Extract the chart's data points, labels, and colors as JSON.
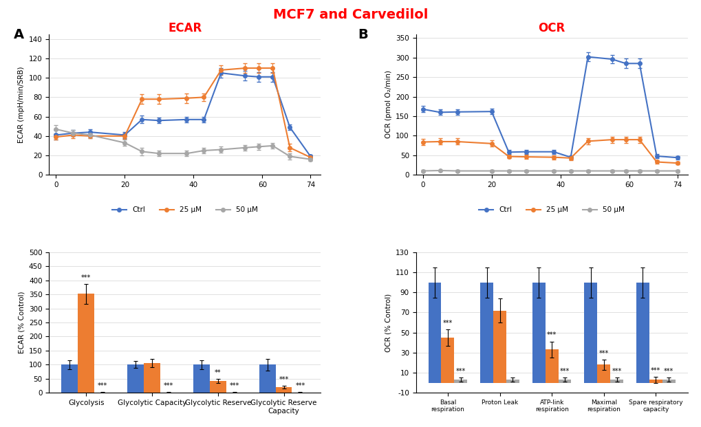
{
  "title": "MCF7 and Carvedilol",
  "title_color": "#ff0000",
  "ecar_line_x": [
    0,
    5,
    10,
    20,
    25,
    30,
    38,
    43,
    48,
    55,
    59,
    63,
    68,
    74
  ],
  "ecar_ctrl_y": [
    41,
    43,
    44,
    41,
    57,
    56,
    57,
    57,
    105,
    102,
    101,
    101,
    49,
    19
  ],
  "ecar_25_y": [
    39,
    41,
    40,
    40,
    78,
    78,
    79,
    80,
    108,
    110,
    110,
    110,
    28,
    18
  ],
  "ecar_50_y": [
    47,
    43,
    41,
    33,
    24,
    22,
    22,
    25,
    26,
    28,
    29,
    30,
    19,
    16
  ],
  "ecar_ctrl_err": [
    5,
    3,
    3,
    3,
    4,
    3,
    3,
    3,
    5,
    5,
    5,
    5,
    3,
    2
  ],
  "ecar_25_err": [
    3,
    3,
    2,
    3,
    5,
    5,
    5,
    4,
    5,
    5,
    5,
    5,
    4,
    2
  ],
  "ecar_50_err": [
    4,
    3,
    3,
    3,
    4,
    3,
    3,
    3,
    3,
    3,
    3,
    3,
    3,
    2
  ],
  "ocr_line_x": [
    0,
    5,
    10,
    20,
    25,
    30,
    38,
    43,
    48,
    55,
    59,
    63,
    68,
    74
  ],
  "ocr_ctrl_y": [
    168,
    160,
    161,
    162,
    58,
    59,
    59,
    45,
    302,
    296,
    285,
    285,
    48,
    44
  ],
  "ocr_25_y": [
    84,
    85,
    85,
    80,
    47,
    46,
    45,
    43,
    86,
    90,
    90,
    90,
    33,
    30
  ],
  "ocr_50_y": [
    10,
    11,
    10,
    10,
    10,
    10,
    10,
    10,
    10,
    10,
    10,
    10,
    10,
    10
  ],
  "ocr_ctrl_err": [
    8,
    7,
    7,
    7,
    5,
    5,
    5,
    5,
    12,
    10,
    12,
    12,
    5,
    4
  ],
  "ocr_25_err": [
    8,
    8,
    8,
    8,
    5,
    5,
    5,
    5,
    8,
    8,
    8,
    8,
    5,
    4
  ],
  "ocr_50_err": [
    2,
    2,
    2,
    2,
    2,
    2,
    2,
    2,
    2,
    2,
    2,
    2,
    2,
    2
  ],
  "ecar_bar_categories": [
    "Glycolysis",
    "Glycolytic Capacity",
    "Glycolytic Reserve",
    "Glycolytic Reserve\nCapacity"
  ],
  "ecar_bar_ctrl": [
    100,
    100,
    100,
    100
  ],
  "ecar_bar_25": [
    352,
    105,
    42,
    20
  ],
  "ecar_bar_50": [
    2,
    2,
    2,
    2
  ],
  "ecar_bar_ctrl_err": [
    15,
    12,
    15,
    20
  ],
  "ecar_bar_25_err": [
    35,
    15,
    8,
    5
  ],
  "ecar_bar_50_err": [
    2,
    2,
    2,
    2
  ],
  "ocr_bar_categories": [
    "Basal\nrespiration",
    "Proton Leak",
    "ATP-link\nrespiration",
    "Maximal\nrespiration",
    "Spare respiratory\ncapacity"
  ],
  "ocr_bar_ctrl": [
    100,
    100,
    100,
    100,
    100
  ],
  "ocr_bar_25": [
    45,
    72,
    33,
    18,
    3
  ],
  "ocr_bar_50": [
    3,
    3,
    3,
    3,
    3
  ],
  "ocr_bar_ctrl_err": [
    15,
    15,
    15,
    15,
    15
  ],
  "ocr_bar_25_err": [
    8,
    12,
    8,
    5,
    3
  ],
  "ocr_bar_50_err": [
    2,
    2,
    2,
    2,
    2
  ],
  "color_ctrl": "#4472c4",
  "color_25": "#ed7d31",
  "color_50": "#a6a6a6",
  "ecar_bar_annotations_25": [
    "***",
    "",
    "",
    "***",
    "",
    "***",
    "",
    "***"
  ],
  "ecar_bar_annotations_50": [
    "***",
    "",
    "***",
    "",
    "***",
    "",
    "***",
    ""
  ],
  "ocr_yticks": [
    0,
    50,
    100,
    150,
    200,
    250,
    300,
    350
  ],
  "ecar_yticks": [
    0,
    20,
    40,
    60,
    80,
    100,
    120,
    140
  ],
  "ecar_xticks": [
    0,
    20,
    40,
    60,
    74
  ],
  "ocr_xticks": [
    0,
    20,
    40,
    60,
    74
  ]
}
